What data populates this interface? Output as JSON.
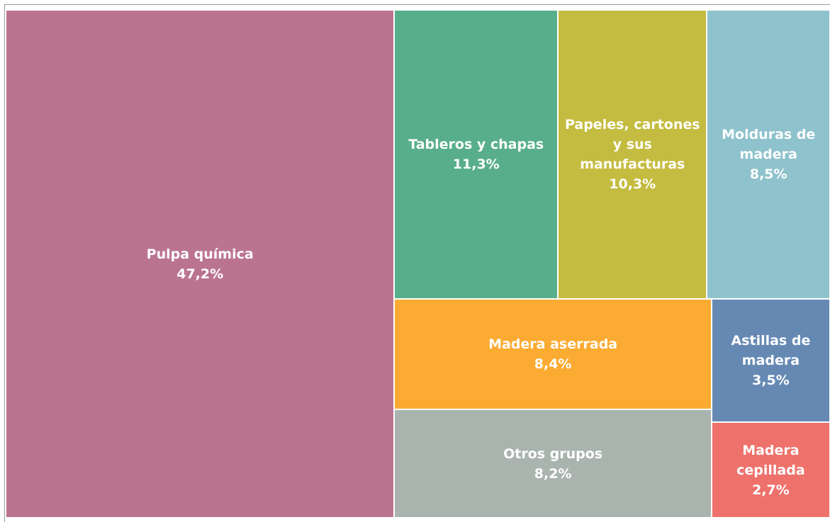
{
  "chart_data": {
    "type": "treemap",
    "categories": [
      "Pulpa química",
      "Tableros y chapas",
      "Papeles, cartones y sus manufacturas",
      "Molduras de madera",
      "Madera aserrada",
      "Otros grupos",
      "Astillas de madera",
      "Madera cepillada"
    ],
    "values": [
      47.2,
      11.3,
      10.3,
      8.5,
      8.4,
      8.2,
      3.5,
      2.7
    ],
    "value_labels": [
      "47,2%",
      "11,3%",
      "10,3%",
      "8,5%",
      "8,4%",
      "8,2%",
      "3,5%",
      "2,7%"
    ],
    "colors": [
      "#bb7490",
      "#58ae8b",
      "#c4bc40",
      "#8ec2cc",
      "#fcab32",
      "#aab4af",
      "#6689b4",
      "#ee716b"
    ]
  }
}
